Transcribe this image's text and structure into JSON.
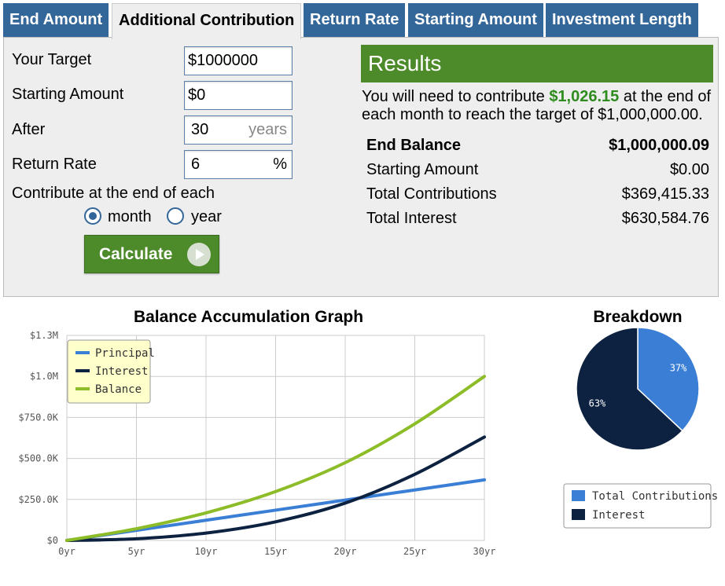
{
  "tabs": [
    {
      "label": "End Amount",
      "active": false
    },
    {
      "label": "Additional Contribution",
      "active": true
    },
    {
      "label": "Return Rate",
      "active": false
    },
    {
      "label": "Starting Amount",
      "active": false
    },
    {
      "label": "Investment Length",
      "active": false
    }
  ],
  "form": {
    "target_label": "Your Target",
    "target_value": "$1000000",
    "starting_label": "Starting Amount",
    "starting_value": "$0",
    "after_label": "After",
    "after_value": "30",
    "after_suffix": "years",
    "rate_label": "Return Rate",
    "rate_value": "6",
    "rate_suffix": "%",
    "contribute_label": "Contribute at the end of each",
    "option_month": "month",
    "option_year": "year",
    "selected": "month",
    "calculate_label": "Calculate"
  },
  "results": {
    "title": "Results",
    "sentence_pre": "You will need to contribute ",
    "sentence_amount": "$1,026.15",
    "sentence_post": " at the end of each month to reach the target of $1,000,000.00.",
    "rows": [
      {
        "label": "End Balance",
        "value": "$1,000,000.09"
      },
      {
        "label": "Starting Amount",
        "value": "$0.00"
      },
      {
        "label": "Total Contributions",
        "value": "$369,415.33"
      },
      {
        "label": "Total Interest",
        "value": "$630,584.76"
      }
    ]
  },
  "colors": {
    "principal": "#3a7fd5",
    "interest": "#0d2240",
    "balance": "#8cbd28",
    "tab": "#336699",
    "green": "#4d8a2a"
  },
  "chart_data": [
    {
      "type": "line",
      "title": "Balance Accumulation Graph",
      "x": [
        0,
        5,
        10,
        15,
        20,
        25,
        30
      ],
      "x_tick_labels": [
        "0yr",
        "5yr",
        "10yr",
        "15yr",
        "20yr",
        "25yr",
        "30yr"
      ],
      "y_tick_values": [
        0,
        250000,
        500000,
        750000,
        1000000,
        1250000
      ],
      "y_tick_labels": [
        "$0",
        "$250.0K",
        "$500.0K",
        "$750.0K",
        "$1.0M",
        "$1.3M"
      ],
      "ylim": [
        0,
        1250000
      ],
      "xlim": [
        0,
        30
      ],
      "grid": true,
      "legend": "top-left",
      "series": [
        {
          "name": "Principal",
          "color": "#3a7fd5",
          "values": [
            0,
            61569,
            123138,
            184708,
            246277,
            307846,
            369415
          ]
        },
        {
          "name": "Interest",
          "color": "#0d2240",
          "values": [
            0,
            10020,
            45050,
            113630,
            227840,
            403210,
            630585
          ]
        },
        {
          "name": "Balance",
          "color": "#8cbd28",
          "values": [
            0,
            71589,
            168188,
            298338,
            474117,
            711056,
            1000000
          ]
        }
      ]
    },
    {
      "type": "pie",
      "title": "Breakdown",
      "legend": "bottom",
      "slices": [
        {
          "name": "Total Contributions",
          "value": 37,
          "label": "37%",
          "color": "#3a7fd5"
        },
        {
          "name": "Interest",
          "value": 63,
          "label": "63%",
          "color": "#0d2240"
        }
      ]
    }
  ]
}
